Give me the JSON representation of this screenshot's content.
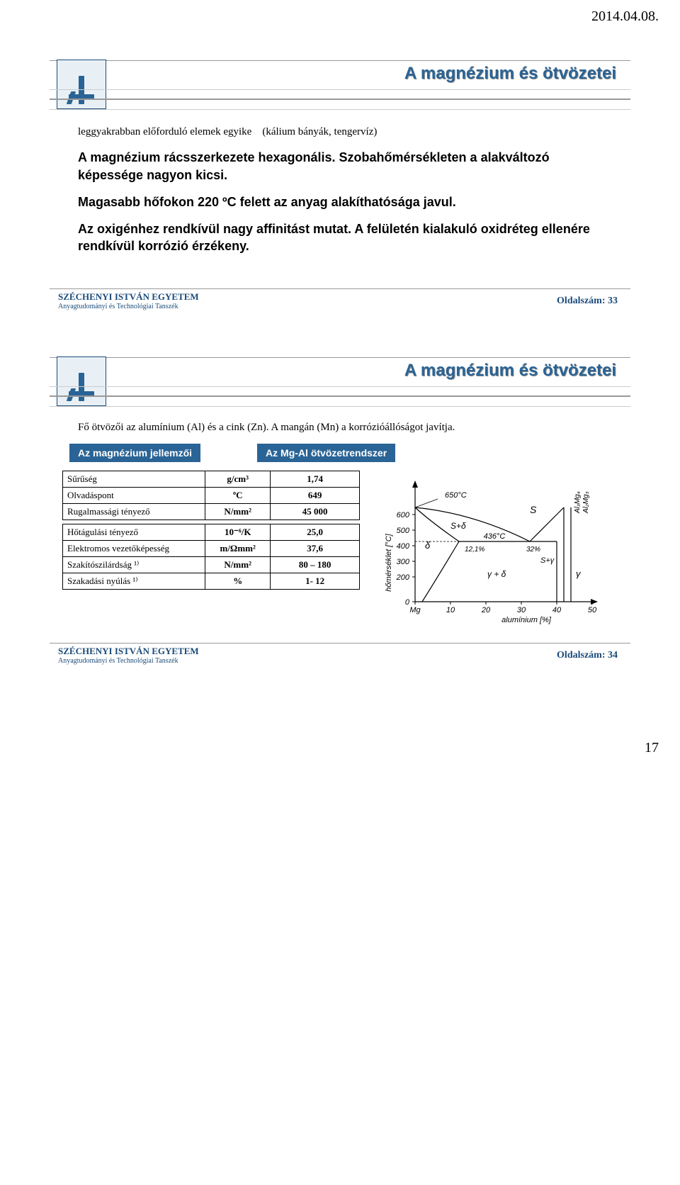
{
  "date_header": "2014.04.08.",
  "page_number_bottom": "17",
  "footer": {
    "university": "SZÉCHENYI ISTVÁN EGYETEM",
    "department": "Anyagtudományi és Technológiai Tanszék"
  },
  "slide1": {
    "title": "A magnézium és ötvözetei",
    "intro_prefix": "leggyakrabban előforduló elemek egyike",
    "intro_paren": "(kálium bányák, tengervíz)",
    "p1": "A magnézium rácsszerkezete hexagonális. Szobahőmérsékleten a alakváltozó képessége nagyon kicsi.",
    "p2": "Magasabb hőfokon 220 ºC felett az anyag alakíthatósága javul.",
    "p3": "Az oxigénhez rendkívül nagy affinitást mutat. A felületén kialakuló oxidréteg ellenére rendkívül korrózió érzékeny.",
    "page_label": "Oldalszám: 33"
  },
  "slide2": {
    "title": "A magnézium és ötvözetei",
    "intro": "Fő ötvözői az alumínium (Al) és a cink (Zn). A mangán (Mn) a korrózióállóságot javítja.",
    "left_label": "Az magnézium jellemzői",
    "right_label": "Az Mg-Al ötvözetrendszer",
    "table": {
      "rows_a": [
        {
          "name": "Sűrűség",
          "unit": "g/cm³",
          "val": "1,74"
        },
        {
          "name": "Olvadáspont",
          "unit": "ºC",
          "val": "649"
        },
        {
          "name": "Rugalmassági tényező",
          "unit": "N/mm²",
          "val": "45 000"
        }
      ],
      "rows_b": [
        {
          "name": "Hőtágulási tényező",
          "unit": "10⁻⁶/K",
          "val": "25,0"
        },
        {
          "name": "Elektromos vezetőképesség",
          "unit": "m/Ωmm²",
          "val": "37,6"
        },
        {
          "name": "Szakítószilárdság ¹⁾",
          "unit": "N/mm²",
          "val": "80 – 180"
        },
        {
          "name": "Szakadási nyúlás ¹⁾",
          "unit": "%",
          "val": "1- 12"
        }
      ]
    },
    "chart": {
      "ylabel": "hőmérséklet [°C]",
      "xlabel": "alumínium [%]",
      "top_temp": "650°C",
      "mid_temp": "436°C",
      "pct1": "12,1%",
      "pct2": "32%",
      "yticks": [
        "0",
        "200",
        "300",
        "400",
        "500",
        "600"
      ],
      "xticks": [
        "Mg",
        "10",
        "20",
        "30",
        "40",
        "50"
      ],
      "labels": {
        "delta": "δ",
        "s_plus_delta": "S+δ",
        "s": "S",
        "gamma_plus_delta": "γ + δ",
        "s_plus_gamma": "S+γ",
        "gamma": "γ",
        "phase1": "Al₃Mg₄",
        "phase2": "Al₂Mg₃"
      }
    },
    "page_label": "Oldalszám: 34"
  }
}
